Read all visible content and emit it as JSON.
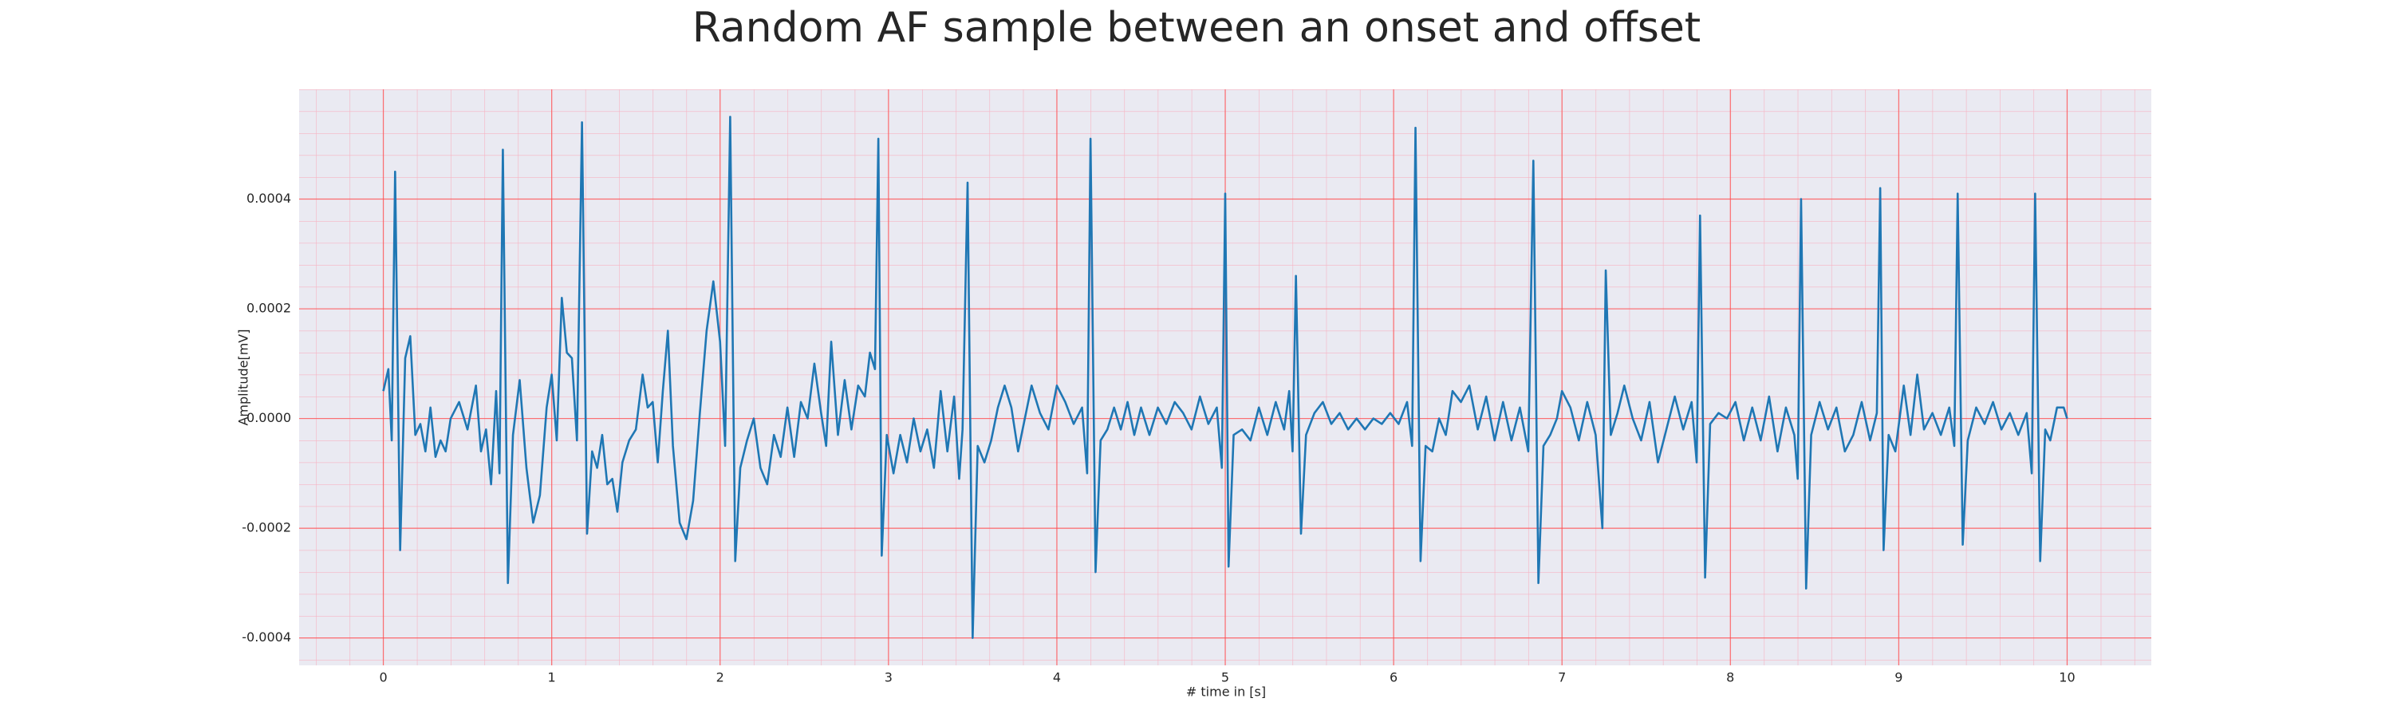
{
  "chart_data": {
    "type": "line",
    "title": "Random AF sample between an onset and offset",
    "xlabel": "# time in [s]",
    "ylabel": "Amplitude[mV]",
    "color": "#1f77b4",
    "grid": true,
    "xlim": [
      -0.5,
      10.5
    ],
    "ylim": [
      -0.00045,
      0.0006
    ],
    "xticks": [
      0,
      1,
      2,
      3,
      4,
      5,
      6,
      7,
      8,
      9,
      10
    ],
    "yticks": [
      -0.0004,
      -0.0002,
      {
        "value": 0,
        "label": "0.0000"
      },
      0.0002,
      0.0004
    ],
    "x": [
      0,
      0.03,
      0.05,
      0.07,
      0.1,
      0.13,
      0.16,
      0.19,
      0.22,
      0.25,
      0.28,
      0.31,
      0.34,
      0.37,
      0.4,
      0.45,
      0.5,
      0.55,
      0.58,
      0.61,
      0.64,
      0.67,
      0.69,
      0.71,
      0.74,
      0.77,
      0.81,
      0.85,
      0.89,
      0.93,
      0.97,
      1.0,
      1.03,
      1.06,
      1.09,
      1.12,
      1.15,
      1.18,
      1.21,
      1.24,
      1.27,
      1.3,
      1.33,
      1.36,
      1.39,
      1.42,
      1.46,
      1.5,
      1.54,
      1.57,
      1.6,
      1.63,
      1.66,
      1.69,
      1.72,
      1.76,
      1.8,
      1.84,
      1.88,
      1.92,
      1.96,
      2.0,
      2.03,
      2.06,
      2.09,
      2.12,
      2.16,
      2.2,
      2.24,
      2.28,
      2.32,
      2.36,
      2.4,
      2.44,
      2.48,
      2.52,
      2.56,
      2.6,
      2.63,
      2.66,
      2.7,
      2.74,
      2.78,
      2.82,
      2.86,
      2.89,
      2.92,
      2.94,
      2.96,
      2.99,
      3.03,
      3.07,
      3.11,
      3.15,
      3.19,
      3.23,
      3.27,
      3.31,
      3.35,
      3.39,
      3.42,
      3.44,
      3.47,
      3.5,
      3.53,
      3.57,
      3.61,
      3.65,
      3.69,
      3.73,
      3.77,
      3.81,
      3.85,
      3.9,
      3.95,
      4.0,
      4.05,
      4.1,
      4.15,
      4.18,
      4.2,
      4.23,
      4.26,
      4.3,
      4.34,
      4.38,
      4.42,
      4.46,
      4.5,
      4.55,
      4.6,
      4.65,
      4.7,
      4.75,
      4.8,
      4.85,
      4.9,
      4.95,
      4.98,
      5.0,
      5.02,
      5.05,
      5.1,
      5.15,
      5.2,
      5.25,
      5.3,
      5.35,
      5.38,
      5.4,
      5.42,
      5.45,
      5.48,
      5.53,
      5.58,
      5.63,
      5.68,
      5.73,
      5.78,
      5.83,
      5.88,
      5.93,
      5.98,
      6.03,
      6.08,
      6.11,
      6.13,
      6.16,
      6.19,
      6.23,
      6.27,
      6.31,
      6.35,
      6.4,
      6.45,
      6.5,
      6.55,
      6.6,
      6.65,
      6.7,
      6.75,
      6.8,
      6.83,
      6.86,
      6.89,
      6.93,
      6.97,
      7.0,
      7.05,
      7.1,
      7.15,
      7.2,
      7.24,
      7.26,
      7.29,
      7.33,
      7.37,
      7.42,
      7.47,
      7.52,
      7.57,
      7.62,
      7.67,
      7.72,
      7.77,
      7.8,
      7.82,
      7.85,
      7.88,
      7.93,
      7.98,
      8.03,
      8.08,
      8.13,
      8.18,
      8.23,
      8.28,
      8.33,
      8.38,
      8.4,
      8.42,
      8.45,
      8.48,
      8.53,
      8.58,
      8.63,
      8.68,
      8.73,
      8.78,
      8.83,
      8.87,
      8.89,
      8.91,
      8.94,
      8.98,
      9.03,
      9.07,
      9.11,
      9.15,
      9.2,
      9.25,
      9.3,
      9.33,
      9.35,
      9.38,
      9.41,
      9.46,
      9.51,
      9.56,
      9.61,
      9.66,
      9.71,
      9.76,
      9.79,
      9.81,
      9.84,
      9.87,
      9.9,
      9.94,
      9.98,
      10.0
    ],
    "values": [
      5e-05,
      9e-05,
      -4e-05,
      0.00045,
      -0.00024,
      0.00011,
      0.00015,
      -3e-05,
      -1e-05,
      -6e-05,
      2e-05,
      -7e-05,
      -4e-05,
      -6e-05,
      0,
      3e-05,
      -2e-05,
      6e-05,
      -6e-05,
      -2e-05,
      -0.00012,
      5e-05,
      -0.0001,
      0.00049,
      -0.0003,
      -3e-05,
      7e-05,
      -9e-05,
      -0.00019,
      -0.00014,
      2e-05,
      8e-05,
      -4e-05,
      0.00022,
      0.00012,
      0.00011,
      -4e-05,
      0.00054,
      -0.00021,
      -6e-05,
      -9e-05,
      -3e-05,
      -0.00012,
      -0.00011,
      -0.00017,
      -8e-05,
      -4e-05,
      -2e-05,
      8e-05,
      2e-05,
      3e-05,
      -8e-05,
      5e-05,
      0.00016,
      -5e-05,
      -0.00019,
      -0.00022,
      -0.00015,
      1e-05,
      0.00016,
      0.00025,
      0.00014,
      -5e-05,
      0.00055,
      -0.00026,
      -9e-05,
      -4e-05,
      0,
      -9e-05,
      -0.00012,
      -3e-05,
      -7e-05,
      2e-05,
      -7e-05,
      3e-05,
      0,
      0.0001,
      1e-05,
      -5e-05,
      0.00014,
      -3e-05,
      7e-05,
      -2e-05,
      6e-05,
      4e-05,
      0.00012,
      9e-05,
      0.00051,
      -0.00025,
      -3e-05,
      -0.0001,
      -3e-05,
      -8e-05,
      0,
      -6e-05,
      -2e-05,
      -9e-05,
      5e-05,
      -6e-05,
      4e-05,
      -0.00011,
      -2e-05,
      0.00043,
      -0.0004,
      -5e-05,
      -8e-05,
      -4e-05,
      2e-05,
      6e-05,
      2e-05,
      -6e-05,
      0,
      6e-05,
      1e-05,
      -2e-05,
      6e-05,
      3e-05,
      -1e-05,
      2e-05,
      -0.0001,
      0.00051,
      -0.00028,
      -4e-05,
      -2e-05,
      2e-05,
      -2e-05,
      3e-05,
      -3e-05,
      2e-05,
      -3e-05,
      2e-05,
      -1e-05,
      3e-05,
      1e-05,
      -2e-05,
      4e-05,
      -1e-05,
      2e-05,
      -9e-05,
      0.00041,
      -0.00027,
      -3e-05,
      -2e-05,
      -4e-05,
      2e-05,
      -3e-05,
      3e-05,
      -2e-05,
      5e-05,
      -6e-05,
      0.00026,
      -0.00021,
      -3e-05,
      1e-05,
      3e-05,
      -1e-05,
      1e-05,
      -2e-05,
      0,
      -2e-05,
      0,
      -1e-05,
      1e-05,
      -1e-05,
      3e-05,
      -5e-05,
      0.00053,
      -0.00026,
      -5e-05,
      -6e-05,
      0,
      -3e-05,
      5e-05,
      3e-05,
      6e-05,
      -2e-05,
      4e-05,
      -4e-05,
      3e-05,
      -4e-05,
      2e-05,
      -6e-05,
      0.00047,
      -0.0003,
      -5e-05,
      -3e-05,
      0,
      5e-05,
      2e-05,
      -4e-05,
      3e-05,
      -3e-05,
      -0.0002,
      0.00027,
      -3e-05,
      1e-05,
      6e-05,
      0,
      -4e-05,
      3e-05,
      -8e-05,
      -2e-05,
      4e-05,
      -2e-05,
      3e-05,
      -8e-05,
      0.00037,
      -0.00029,
      -1e-05,
      1e-05,
      0,
      3e-05,
      -4e-05,
      2e-05,
      -4e-05,
      4e-05,
      -6e-05,
      2e-05,
      -3e-05,
      -0.00011,
      0.0004,
      -0.00031,
      -3e-05,
      3e-05,
      -2e-05,
      2e-05,
      -6e-05,
      -3e-05,
      3e-05,
      -4e-05,
      1e-05,
      0.00042,
      -0.00024,
      -3e-05,
      -6e-05,
      6e-05,
      -3e-05,
      8e-05,
      -2e-05,
      1e-05,
      -3e-05,
      2e-05,
      -5e-05,
      0.00041,
      -0.00023,
      -4e-05,
      2e-05,
      -1e-05,
      3e-05,
      -2e-05,
      1e-05,
      -3e-05,
      1e-05,
      -0.0001,
      0.00041,
      -0.00026,
      -2e-05,
      -4e-05,
      2e-05,
      2e-05,
      0
    ]
  }
}
